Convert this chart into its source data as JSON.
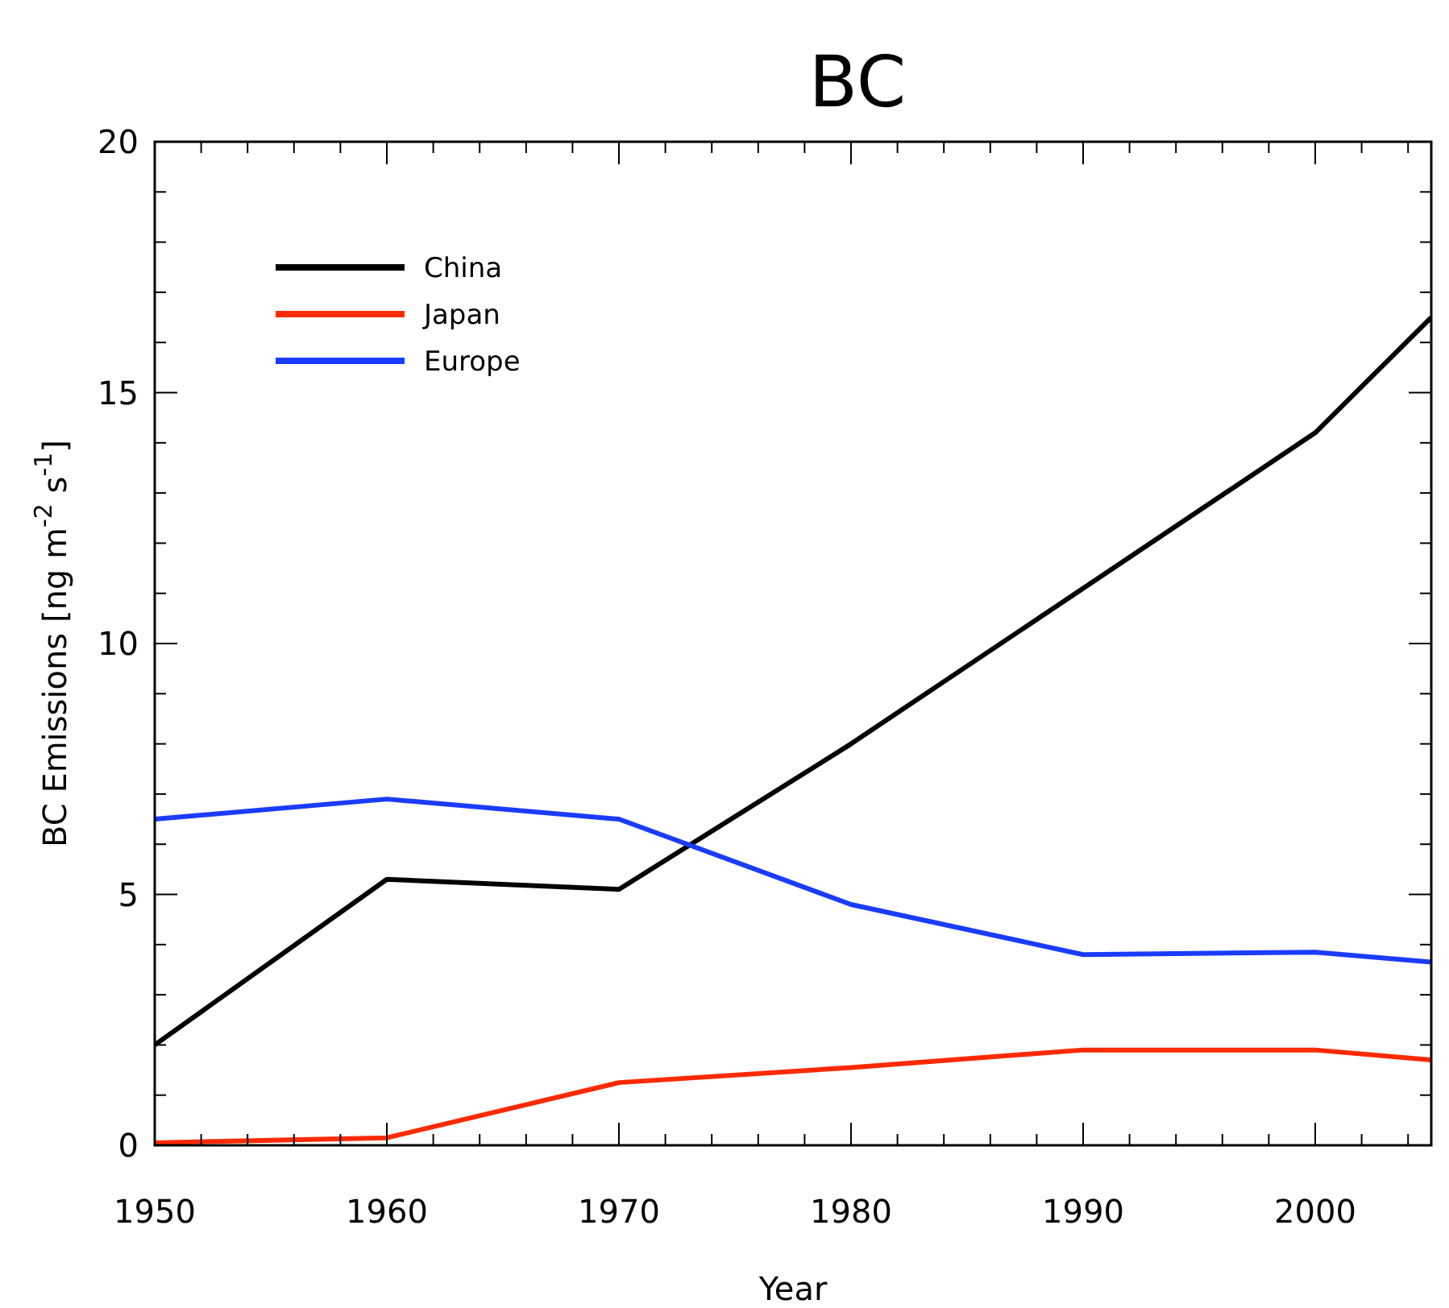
{
  "chart_data": {
    "type": "line",
    "title": "BC",
    "xlabel": "Year",
    "ylabel": "BC Emissions [ng m$^{-2}$ s$^{-1}$]",
    "x": [
      1950,
      1960,
      1970,
      1980,
      1990,
      2000,
      2005
    ],
    "series": [
      {
        "name": "China",
        "color": "#000000",
        "values": [
          2.0,
          5.3,
          5.1,
          8.0,
          11.1,
          14.2,
          16.5
        ]
      },
      {
        "name": "Japan",
        "color": "#ff2a00",
        "values": [
          0.05,
          0.15,
          1.25,
          1.55,
          1.9,
          1.9,
          1.7
        ]
      },
      {
        "name": "Europe",
        "color": "#1a3cff",
        "values": [
          6.5,
          6.9,
          6.5,
          4.8,
          3.8,
          3.85,
          3.65
        ]
      }
    ],
    "xlim": [
      1950,
      2005
    ],
    "xticks": [
      1950,
      {
        "value": 1952,
        "label": null
      },
      {
        "value": 1954,
        "label": null
      },
      {
        "value": 1956,
        "label": null
      },
      {
        "value": 1958,
        "label": null
      },
      1960,
      {
        "value": 1962,
        "label": null
      },
      {
        "value": 1964,
        "label": null
      },
      {
        "value": 1966,
        "label": null
      },
      {
        "value": 1968,
        "label": null
      },
      1970,
      {
        "value": 1972,
        "label": null
      },
      {
        "value": 1974,
        "label": null
      },
      {
        "value": 1976,
        "label": null
      },
      {
        "value": 1978,
        "label": null
      },
      1980,
      {
        "value": 1982,
        "label": null
      },
      {
        "value": 1984,
        "label": null
      },
      {
        "value": 1986,
        "label": null
      },
      {
        "value": 1988,
        "label": null
      },
      1990,
      {
        "value": 1992,
        "label": null
      },
      {
        "value": 1994,
        "label": null
      },
      {
        "value": 1996,
        "label": null
      },
      {
        "value": 1998,
        "label": null
      },
      2000,
      {
        "value": 2002,
        "label": null
      },
      {
        "value": 2004,
        "label": null
      }
    ],
    "ylim": [
      0,
      20
    ],
    "yticks": [
      0,
      {
        "value": 1,
        "label": null
      },
      {
        "value": 2,
        "label": null
      },
      {
        "value": 3,
        "label": null
      },
      {
        "value": 4,
        "label": null
      },
      5,
      {
        "value": 6,
        "label": null
      },
      {
        "value": 7,
        "label": null
      },
      {
        "value": 8,
        "label": null
      },
      {
        "value": 9,
        "label": null
      },
      10,
      {
        "value": 11,
        "label": null
      },
      {
        "value": 12,
        "label": null
      },
      {
        "value": 13,
        "label": null
      },
      {
        "value": 14,
        "label": null
      },
      15,
      {
        "value": 16,
        "label": null
      },
      {
        "value": 17,
        "label": null
      },
      {
        "value": 18,
        "label": null
      },
      {
        "value": 19,
        "label": null
      },
      20
    ],
    "grid": false,
    "legend": "top left",
    "line_style": "solid",
    "marker": "none"
  }
}
